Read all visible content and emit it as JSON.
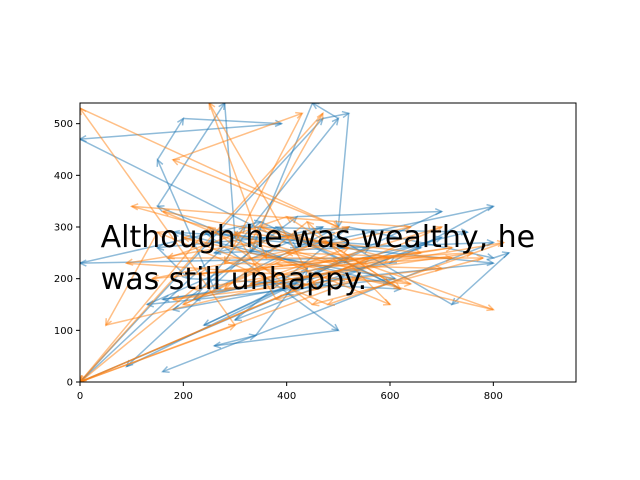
{
  "chart_data": {
    "type": "line",
    "title": "",
    "xlabel": "",
    "ylabel": "",
    "xlim": [
      0,
      960
    ],
    "ylim": [
      0,
      540
    ],
    "xticks": [
      0,
      200,
      400,
      600,
      800
    ],
    "yticks": [
      0,
      100,
      200,
      300,
      400,
      500
    ],
    "grid": false,
    "legend": "none",
    "annotation": {
      "lines": [
        "Although he was wealthy, he",
        "was still unhappy."
      ],
      "anchor": [
        40,
        300
      ]
    },
    "series": [
      {
        "color": "#1f77b4",
        "alpha": 0.5,
        "points": [
          [
            0,
            0
          ],
          [
            470,
            510
          ],
          [
            520,
            520
          ],
          [
            500,
            300
          ],
          [
            260,
            180
          ],
          [
            150,
            430
          ],
          [
            200,
            510
          ],
          [
            390,
            500
          ],
          [
            0,
            470
          ],
          [
            420,
            260
          ],
          [
            800,
            340
          ],
          [
            600,
            230
          ],
          [
            160,
            160
          ],
          [
            450,
            200
          ],
          [
            700,
            280
          ],
          [
            300,
            120
          ],
          [
            520,
            300
          ],
          [
            800,
            240
          ],
          [
            830,
            250
          ],
          [
            720,
            150
          ],
          [
            480,
            290
          ],
          [
            150,
            260
          ],
          [
            210,
            200
          ],
          [
            620,
            180
          ],
          [
            380,
            300
          ],
          [
            90,
            30
          ],
          [
            560,
            260
          ],
          [
            240,
            290
          ],
          [
            500,
            100
          ],
          [
            260,
            70
          ],
          [
            340,
            90
          ],
          [
            440,
            220
          ],
          [
            150,
            340
          ],
          [
            280,
            540
          ],
          [
            300,
            280
          ],
          [
            800,
            230
          ],
          [
            500,
            200
          ],
          [
            180,
            140
          ],
          [
            420,
            320
          ],
          [
            700,
            330
          ],
          [
            240,
            110
          ],
          [
            520,
            240
          ],
          [
            0,
            230
          ],
          [
            350,
            310
          ],
          [
            600,
            190
          ],
          [
            180,
            290
          ],
          [
            660,
            260
          ],
          [
            400,
            170
          ],
          [
            0,
            0
          ],
          [
            320,
            300
          ],
          [
            750,
            290
          ],
          [
            220,
            160
          ],
          [
            500,
            510
          ],
          [
            450,
            540
          ],
          [
            330,
            250
          ],
          [
            610,
            200
          ],
          [
            130,
            150
          ],
          [
            470,
            300
          ],
          [
            260,
            250
          ],
          [
            800,
            270
          ],
          [
            160,
            20
          ]
        ]
      },
      {
        "color": "#ff7f0e",
        "alpha": 0.5,
        "points": [
          [
            0,
            0
          ],
          [
            300,
            110
          ],
          [
            0,
            530
          ],
          [
            500,
            300
          ],
          [
            180,
            430
          ],
          [
            430,
            520
          ],
          [
            280,
            230
          ],
          [
            700,
            220
          ],
          [
            180,
            160
          ],
          [
            820,
            270
          ],
          [
            480,
            150
          ],
          [
            150,
            290
          ],
          [
            50,
            110
          ],
          [
            600,
            240
          ],
          [
            350,
            300
          ],
          [
            800,
            140
          ],
          [
            200,
            280
          ],
          [
            460,
            180
          ],
          [
            250,
            540
          ],
          [
            360,
            240
          ],
          [
            640,
            300
          ],
          [
            100,
            340
          ],
          [
            500,
            230
          ],
          [
            720,
            260
          ],
          [
            220,
            180
          ],
          [
            0,
            0
          ],
          [
            540,
            200
          ],
          [
            380,
            160
          ],
          [
            300,
            290
          ],
          [
            660,
            250
          ],
          [
            140,
            200
          ],
          [
            480,
            270
          ],
          [
            620,
            180
          ],
          [
            400,
            320
          ],
          [
            170,
            240
          ],
          [
            780,
            240
          ],
          [
            450,
            150
          ],
          [
            250,
            300
          ],
          [
            0,
            0
          ],
          [
            700,
            300
          ],
          [
            330,
            190
          ],
          [
            520,
            260
          ],
          [
            160,
            330
          ],
          [
            600,
            150
          ],
          [
            440,
            310
          ],
          [
            280,
            180
          ],
          [
            760,
            250
          ],
          [
            380,
            230
          ],
          [
            200,
            150
          ],
          [
            520,
            300
          ],
          [
            90,
            230
          ],
          [
            640,
            190
          ],
          [
            330,
            270
          ],
          [
            470,
            520
          ],
          [
            0,
            0
          ],
          [
            560,
            240
          ],
          [
            230,
            210
          ],
          [
            720,
            240
          ],
          [
            400,
            250
          ]
        ]
      }
    ]
  }
}
